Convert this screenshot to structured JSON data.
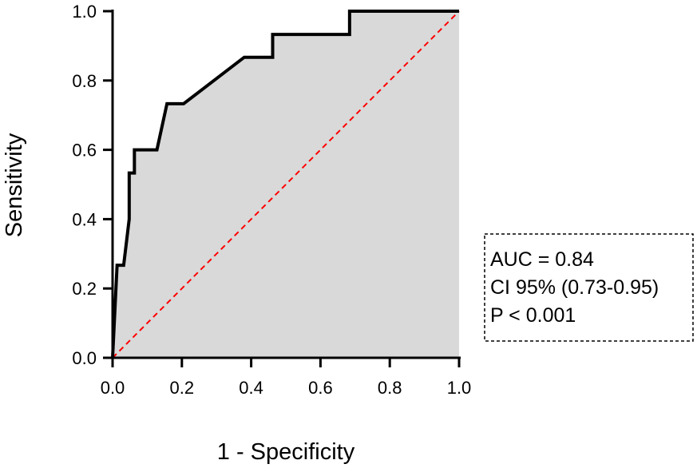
{
  "chart_data": {
    "type": "line",
    "title": "",
    "xlabel": "1 - Specificity",
    "ylabel": "Sensitivity",
    "xlim": [
      0,
      1
    ],
    "ylim": [
      0,
      1
    ],
    "grid": false,
    "x_ticks": [
      "0.0",
      "0.2",
      "0.4",
      "0.6",
      "0.8",
      "1.0"
    ],
    "y_ticks": [
      "0.0",
      "0.2",
      "0.4",
      "0.6",
      "0.8",
      "1.0"
    ],
    "series": [
      {
        "name": "ROC curve",
        "color": "#000000",
        "fill": "#d9d9d9",
        "points": [
          [
            0.0,
            0.0
          ],
          [
            0.013,
            0.267
          ],
          [
            0.032,
            0.267
          ],
          [
            0.048,
            0.4
          ],
          [
            0.048,
            0.533
          ],
          [
            0.063,
            0.533
          ],
          [
            0.063,
            0.6
          ],
          [
            0.128,
            0.6
          ],
          [
            0.157,
            0.733
          ],
          [
            0.205,
            0.733
          ],
          [
            0.38,
            0.867
          ],
          [
            0.462,
            0.867
          ],
          [
            0.462,
            0.933
          ],
          [
            0.684,
            0.933
          ],
          [
            0.684,
            1.0
          ],
          [
            1.0,
            1.0
          ]
        ]
      },
      {
        "name": "Reference line",
        "color": "#ff0000",
        "style": "dashed",
        "points": [
          [
            0,
            0
          ],
          [
            1,
            1
          ]
        ]
      }
    ],
    "annotation": {
      "lines": [
        "AUC = 0.84",
        "CI 95% (0.73-0.95)",
        "P < 0.001"
      ],
      "placement": "right"
    }
  }
}
